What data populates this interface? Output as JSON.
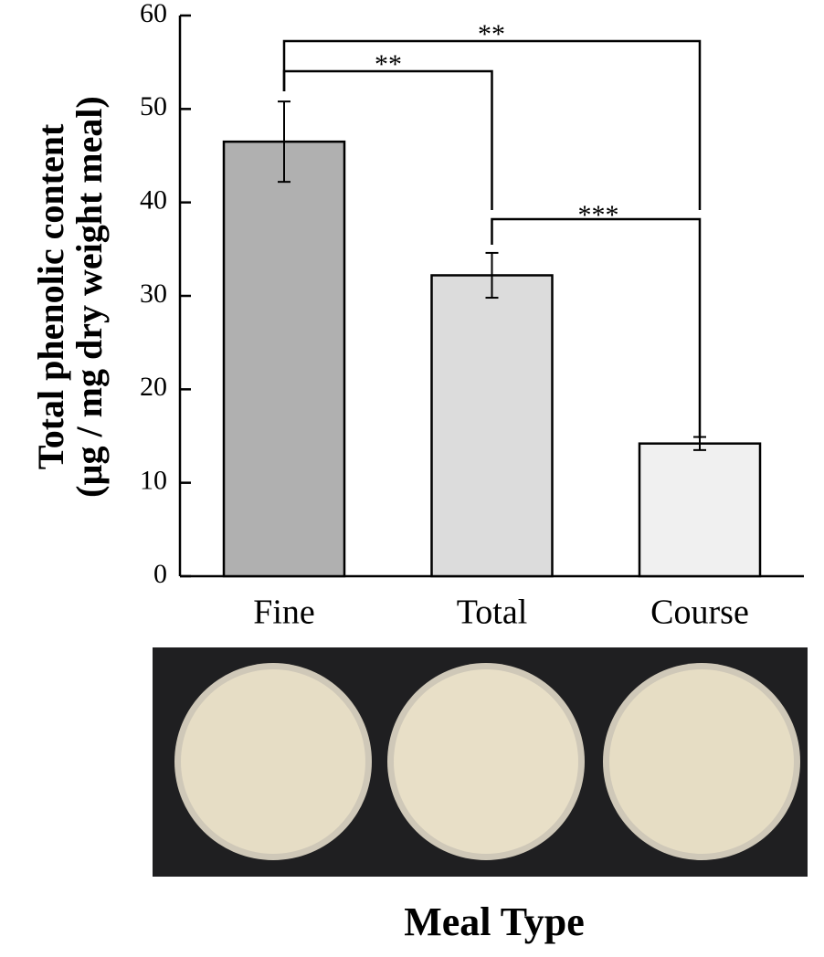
{
  "chart_data": {
    "type": "bar",
    "categories": [
      "Fine",
      "Total",
      "Course"
    ],
    "values": [
      46.5,
      32.2,
      14.2
    ],
    "errors": [
      4.3,
      2.4,
      0.7
    ],
    "colors": [
      "#b0b0b0",
      "#dcdcdc",
      "#f0f0f0"
    ],
    "ylim": [
      0,
      60
    ],
    "yticks": [
      0,
      10,
      20,
      30,
      40,
      50,
      60
    ],
    "y_label": [
      "Total phenolic content",
      "(µg / mg dry weight meal)"
    ],
    "x_label": "Meal Type",
    "annotations": [
      "**",
      "**",
      "***"
    ]
  }
}
